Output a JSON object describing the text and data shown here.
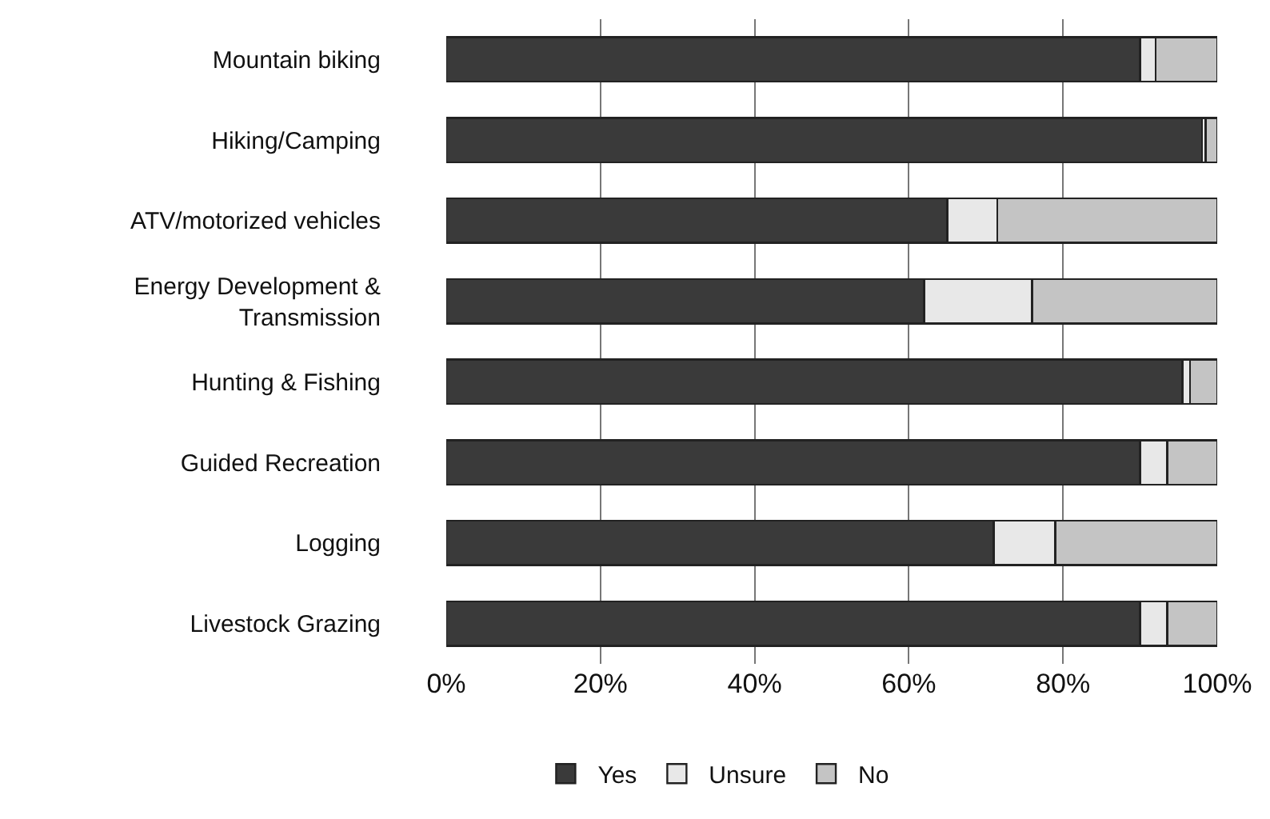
{
  "chart_data": {
    "type": "bar",
    "orientation": "horizontal",
    "stacked": true,
    "categories": [
      "Mountain biking",
      "Hiking/Camping",
      "ATV/motorized vehicles",
      "Energy Development &\nTransmission",
      "Hunting & Fishing",
      "Guided Recreation",
      "Logging",
      "Livestock Grazing"
    ],
    "series": [
      {
        "name": "Yes",
        "color": "#3a3a3a",
        "values": [
          90,
          98,
          65,
          62,
          95.5,
          90,
          71,
          90
        ]
      },
      {
        "name": "Unsure",
        "color": "#e8e8e8",
        "values": [
          2,
          0.5,
          6.5,
          14,
          1,
          3.5,
          8,
          3.5
        ]
      },
      {
        "name": "No",
        "color": "#c4c4c4",
        "values": [
          8,
          1.5,
          28.5,
          24,
          3.5,
          6.5,
          21,
          6.5
        ]
      }
    ],
    "xlim": [
      0,
      100
    ],
    "xticks": [
      {
        "value": 0,
        "label": "0%"
      },
      {
        "value": 20,
        "label": "20%"
      },
      {
        "value": 40,
        "label": "40%"
      },
      {
        "value": 60,
        "label": "60%"
      },
      {
        "value": 80,
        "label": "80%"
      },
      {
        "value": 100,
        "label": "100%"
      }
    ],
    "grid": "x",
    "legend": "bottom"
  }
}
